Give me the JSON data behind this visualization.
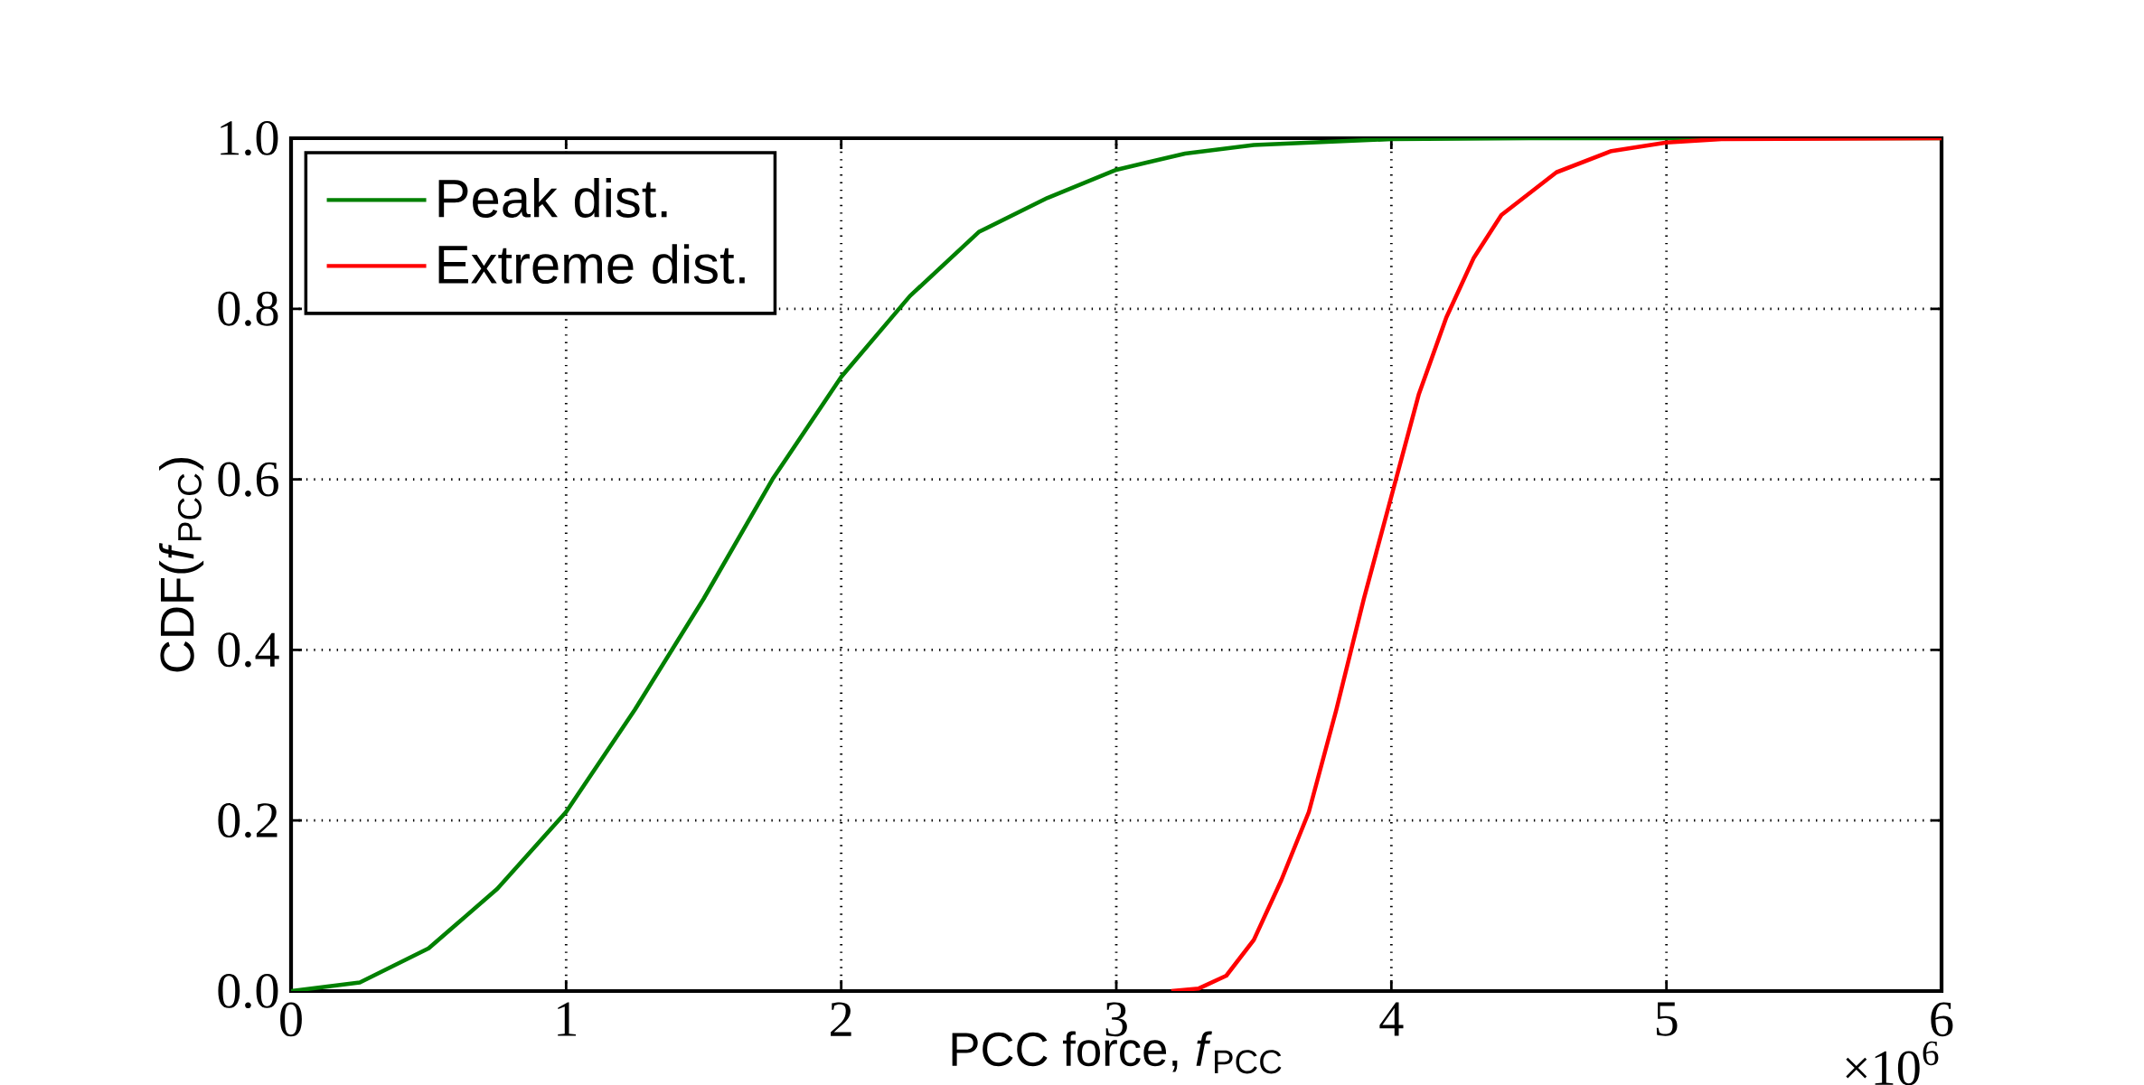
{
  "chart_data": {
    "type": "line",
    "xlabel": "PCC force, *f*$_{PCC}$",
    "ylabel": "CDF(*f*$_{PCC}$)",
    "annotations": [
      "×10$^{6}$"
    ],
    "series": [
      {
        "name": "Peak dist.",
        "color": "#008000",
        "x": [
          0,
          0.25,
          0.5,
          0.75,
          1.0,
          1.25,
          1.5,
          1.75,
          2.0,
          2.25,
          2.5,
          2.75,
          3.0,
          3.25,
          3.5,
          4.0,
          4.5,
          6.0
        ],
        "values": [
          0,
          0.01,
          0.05,
          0.12,
          0.21,
          0.33,
          0.46,
          0.6,
          0.72,
          0.815,
          0.89,
          0.93,
          0.963,
          0.982,
          0.992,
          0.999,
          1.0,
          1.0
        ]
      },
      {
        "name": "Extreme dist.",
        "color": "#ff0000",
        "x": [
          3.2,
          3.3,
          3.4,
          3.5,
          3.6,
          3.7,
          3.8,
          3.9,
          4.0,
          4.1,
          4.2,
          4.3,
          4.4,
          4.6,
          4.8,
          5.0,
          5.2,
          6.0
        ],
        "values": [
          0,
          0.003,
          0.018,
          0.06,
          0.13,
          0.21,
          0.33,
          0.46,
          0.58,
          0.7,
          0.79,
          0.86,
          0.91,
          0.96,
          0.985,
          0.995,
          0.999,
          1.0
        ]
      }
    ],
    "xlim": [
      0,
      6
    ],
    "ylim": [
      0,
      1
    ],
    "xticks": [
      0,
      1,
      2,
      3,
      4,
      5,
      6
    ],
    "yticks": [
      {
        "value": 0,
        "label": "0.0"
      },
      {
        "value": 0.2,
        "label": "0.2"
      },
      {
        "value": 0.4,
        "label": "0.4"
      },
      {
        "value": 0.6,
        "label": "0.6"
      },
      {
        "value": 0.8,
        "label": "0.8"
      },
      {
        "value": 1,
        "label": "1.0"
      }
    ],
    "grid": true,
    "legend": "top left",
    "marker": "none",
    "line_style": "solid"
  }
}
